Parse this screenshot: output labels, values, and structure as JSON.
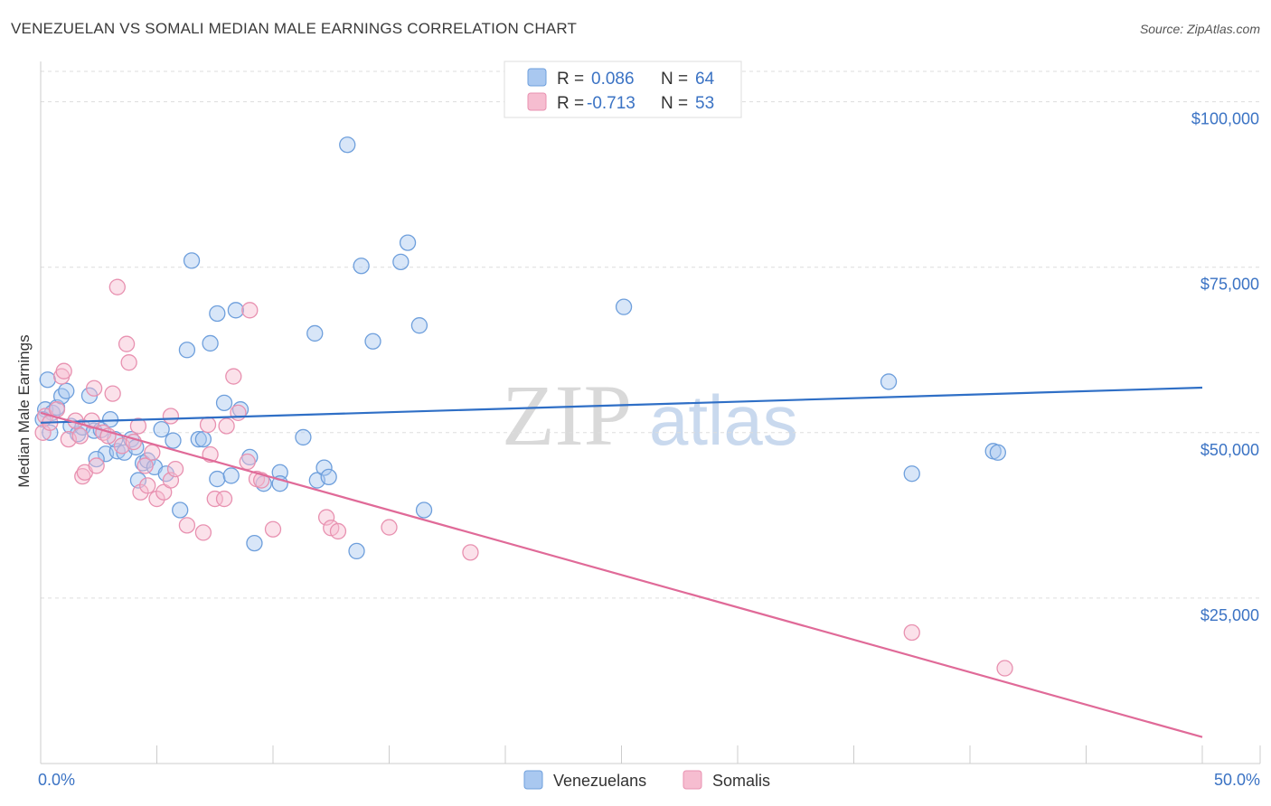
{
  "title": "VENEZUELAN VS SOMALI MEDIAN MALE EARNINGS CORRELATION CHART",
  "source": "Source: ZipAtlas.com",
  "watermark": {
    "zip": "ZIP",
    "atlas": "atlas"
  },
  "colors": {
    "venezuelans_fill": "#a9c8f0",
    "venezuelans_stroke": "#6e9fdc",
    "venezuelans_line": "#2f6fc6",
    "somalis_fill": "#f6bdd0",
    "somalis_stroke": "#e891b0",
    "somalis_line": "#e06a98",
    "axis_text": "#3b73c4"
  },
  "legend": {
    "rows": [
      {
        "r_label": "R =",
        "r_value": "0.086",
        "n_label": "N =",
        "n_value": "64"
      },
      {
        "r_label": "R =",
        "r_value": "-0.713",
        "n_label": "N =",
        "n_value": "53"
      }
    ]
  },
  "bottom_legend": [
    "Venezuelans",
    "Somalis"
  ],
  "chart_data": {
    "type": "scatter",
    "title": "VENEZUELAN VS SOMALI MEDIAN MALE EARNINGS CORRELATION CHART",
    "xlabel": "",
    "ylabel": "Median Male Earnings",
    "xlim": [
      0,
      50
    ],
    "ylim": [
      0,
      105000
    ],
    "x_tick_labels": [
      "0.0%",
      "50.0%"
    ],
    "y_ticks": [
      25000,
      50000,
      75000,
      100000
    ],
    "y_tick_labels": [
      "$25,000",
      "$50,000",
      "$75,000",
      "$100,000"
    ],
    "series": [
      {
        "name": "Venezuelans",
        "trend": {
          "x": [
            0,
            50
          ],
          "y": [
            51500,
            56800
          ]
        },
        "points": [
          [
            0.2,
            53500
          ],
          [
            0.3,
            58000
          ],
          [
            0.5,
            53000
          ],
          [
            0.7,
            53800
          ],
          [
            0.9,
            55500
          ],
          [
            1.1,
            56300
          ],
          [
            1.3,
            51000
          ],
          [
            1.6,
            49800
          ],
          [
            1.8,
            50800
          ],
          [
            2.1,
            55600
          ],
          [
            2.3,
            50300
          ],
          [
            2.6,
            50400
          ],
          [
            2.8,
            46800
          ],
          [
            3.0,
            52000
          ],
          [
            3.3,
            47200
          ],
          [
            3.6,
            47000
          ],
          [
            3.9,
            49000
          ],
          [
            4.1,
            47800
          ],
          [
            4.2,
            42800
          ],
          [
            4.4,
            45400
          ],
          [
            4.6,
            45800
          ],
          [
            4.9,
            44800
          ],
          [
            5.2,
            50500
          ],
          [
            5.4,
            43800
          ],
          [
            5.7,
            48800
          ],
          [
            6.0,
            38300
          ],
          [
            6.3,
            62500
          ],
          [
            6.5,
            76000
          ],
          [
            6.8,
            49000
          ],
          [
            7.0,
            49000
          ],
          [
            7.3,
            63500
          ],
          [
            7.6,
            68000
          ],
          [
            7.6,
            43000
          ],
          [
            7.9,
            54500
          ],
          [
            8.2,
            43500
          ],
          [
            8.4,
            68500
          ],
          [
            8.6,
            53500
          ],
          [
            9.0,
            46300
          ],
          [
            9.2,
            33300
          ],
          [
            9.6,
            42300
          ],
          [
            10.3,
            44000
          ],
          [
            10.3,
            42300
          ],
          [
            11.3,
            49300
          ],
          [
            11.8,
            65000
          ],
          [
            11.9,
            42800
          ],
          [
            12.2,
            44700
          ],
          [
            12.4,
            43300
          ],
          [
            13.2,
            93500
          ],
          [
            13.6,
            32100
          ],
          [
            13.8,
            75200
          ],
          [
            14.3,
            63800
          ],
          [
            15.5,
            75800
          ],
          [
            15.8,
            78700
          ],
          [
            16.3,
            66200
          ],
          [
            16.5,
            38300
          ],
          [
            25.1,
            69000
          ],
          [
            36.5,
            57700
          ],
          [
            37.5,
            43800
          ],
          [
            41.0,
            47200
          ],
          [
            41.2,
            47000
          ],
          [
            0.1,
            52000
          ],
          [
            0.4,
            50000
          ],
          [
            2.4,
            46000
          ],
          [
            3.2,
            49000
          ]
        ]
      },
      {
        "name": "Somalis",
        "trend": {
          "x": [
            0,
            50
          ],
          "y": [
            53000,
            4000
          ]
        },
        "points": [
          [
            0.1,
            50000
          ],
          [
            0.2,
            52500
          ],
          [
            0.4,
            51500
          ],
          [
            0.7,
            53500
          ],
          [
            0.9,
            58500
          ],
          [
            1.0,
            59300
          ],
          [
            1.2,
            49000
          ],
          [
            1.5,
            51800
          ],
          [
            1.7,
            49500
          ],
          [
            1.8,
            43400
          ],
          [
            1.9,
            44000
          ],
          [
            2.2,
            51800
          ],
          [
            2.3,
            56700
          ],
          [
            2.4,
            45000
          ],
          [
            2.7,
            50000
          ],
          [
            2.9,
            49500
          ],
          [
            3.1,
            55900
          ],
          [
            3.3,
            72000
          ],
          [
            3.5,
            48000
          ],
          [
            3.7,
            63400
          ],
          [
            3.8,
            60600
          ],
          [
            4.0,
            48600
          ],
          [
            4.2,
            51000
          ],
          [
            4.3,
            41000
          ],
          [
            4.5,
            45000
          ],
          [
            4.6,
            42000
          ],
          [
            4.8,
            47000
          ],
          [
            5.0,
            40000
          ],
          [
            5.3,
            41000
          ],
          [
            5.6,
            42800
          ],
          [
            5.6,
            52500
          ],
          [
            5.8,
            44500
          ],
          [
            6.3,
            36000
          ],
          [
            7.0,
            34900
          ],
          [
            7.2,
            51200
          ],
          [
            7.3,
            46700
          ],
          [
            7.5,
            40000
          ],
          [
            7.9,
            40000
          ],
          [
            8.0,
            51000
          ],
          [
            8.3,
            58500
          ],
          [
            8.9,
            45600
          ],
          [
            9.0,
            68500
          ],
          [
            9.3,
            43000
          ],
          [
            9.5,
            42800
          ],
          [
            10.0,
            35400
          ],
          [
            12.3,
            37200
          ],
          [
            12.5,
            35600
          ],
          [
            12.8,
            35100
          ],
          [
            15.0,
            35700
          ],
          [
            18.5,
            31900
          ],
          [
            37.5,
            19800
          ],
          [
            41.5,
            14400
          ],
          [
            8.5,
            53000
          ]
        ]
      }
    ]
  }
}
